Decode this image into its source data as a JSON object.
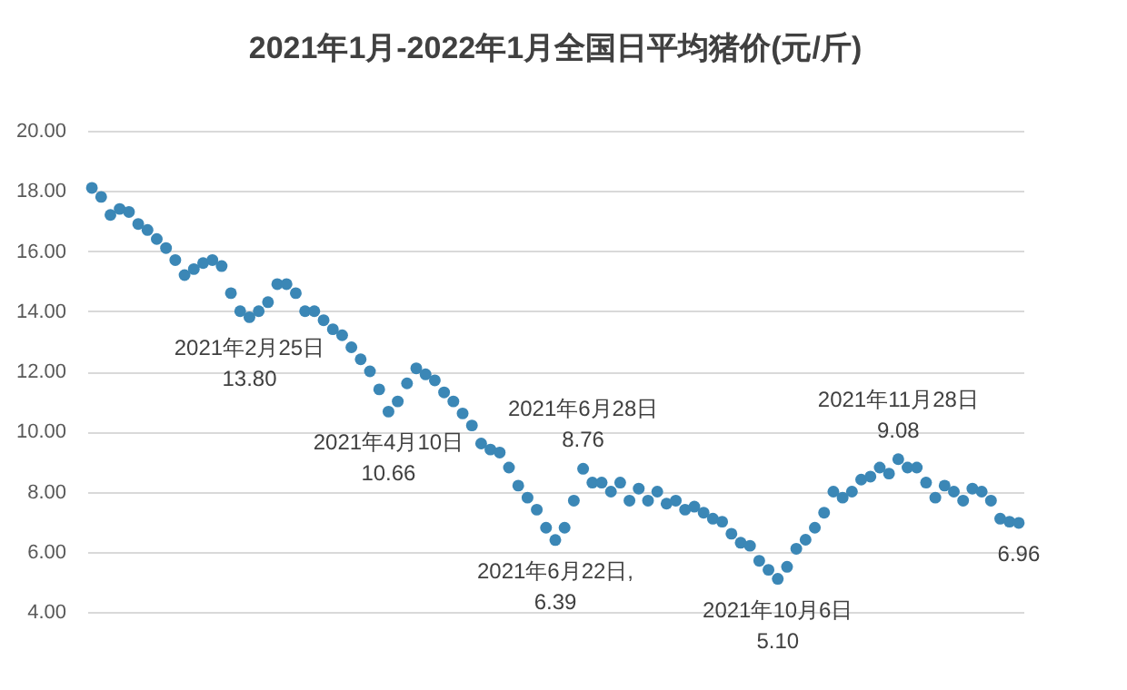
{
  "chart_data": {
    "type": "scatter",
    "title": "2021年1月-2022年1月全国日平均猪价(元/斤)",
    "categories": [
      null,
      null,
      null,
      null,
      null,
      null,
      null,
      null,
      null,
      null,
      null,
      null,
      null,
      null,
      null,
      null,
      null,
      null,
      null,
      null,
      null,
      null,
      null,
      null,
      null,
      null,
      null,
      null,
      null,
      null,
      null,
      null,
      null,
      null,
      null,
      null,
      null,
      null,
      null,
      null,
      null,
      null,
      null,
      null,
      null,
      null,
      null,
      null,
      null,
      null,
      null,
      null,
      null,
      null,
      null,
      null,
      null,
      null,
      null,
      null,
      null,
      null,
      null,
      null,
      null,
      null,
      null,
      null,
      null,
      null,
      null,
      null,
      null,
      null,
      null,
      null,
      null,
      null,
      null,
      null,
      null,
      null,
      null,
      null,
      null,
      null,
      null,
      null,
      null,
      null,
      null,
      null,
      null,
      null,
      null,
      null,
      null,
      null,
      null,
      null,
      null
    ],
    "values": [
      18.1,
      17.8,
      17.2,
      17.4,
      17.3,
      16.9,
      16.7,
      16.4,
      16.1,
      15.7,
      15.2,
      15.4,
      15.6,
      15.7,
      15.5,
      14.6,
      14.0,
      13.8,
      14.0,
      14.3,
      14.9,
      14.9,
      14.6,
      14.0,
      14.0,
      13.7,
      13.4,
      13.2,
      12.8,
      12.4,
      12.0,
      11.4,
      10.66,
      11.0,
      11.6,
      12.1,
      11.9,
      11.7,
      11.3,
      11.0,
      10.6,
      10.2,
      9.6,
      9.4,
      9.3,
      8.8,
      8.2,
      7.8,
      7.4,
      6.8,
      6.39,
      6.8,
      7.7,
      8.76,
      8.3,
      8.3,
      8.0,
      8.3,
      7.7,
      8.1,
      7.7,
      8.0,
      7.6,
      7.7,
      7.4,
      7.5,
      7.3,
      7.1,
      7.0,
      6.6,
      6.3,
      6.2,
      5.7,
      5.4,
      5.1,
      5.5,
      6.1,
      6.4,
      6.8,
      7.3,
      8.0,
      7.8,
      8.0,
      8.4,
      8.5,
      8.8,
      8.6,
      9.08,
      8.8,
      8.8,
      8.3,
      7.8,
      8.2,
      8.0,
      7.7,
      8.1,
      8.0,
      7.7,
      7.1,
      7.0,
      6.96
    ],
    "color": "#3b87b6",
    "marker": "circle",
    "ylim": [
      4,
      20
    ],
    "yticks": [
      {
        "value": 4,
        "label": "4.00"
      },
      {
        "value": 6,
        "label": "6.00"
      },
      {
        "value": 8,
        "label": "8.00"
      },
      {
        "value": 10,
        "label": "10.00"
      },
      {
        "value": 12,
        "label": "12.00"
      },
      {
        "value": 14,
        "label": "14.00"
      },
      {
        "value": 16,
        "label": "16.00"
      },
      {
        "value": 18,
        "label": "18.00"
      },
      {
        "value": 20,
        "label": "20.00"
      }
    ],
    "grid": "y",
    "tick_labels": "y",
    "annotations": [
      {
        "text": "2021年2月25日\n13.80",
        "y": 13.8
      },
      {
        "text": "2021年4月10日\n10.66",
        "y": 10.66
      },
      {
        "text": "2021年6月22日,\n6.39",
        "y": 6.39
      },
      {
        "text": "2021年6月28日\n8.76",
        "y": 8.76
      },
      {
        "text": "2021年10月6日\n5.10",
        "y": 5.1
      },
      {
        "text": "2021年11月28日\n9.08",
        "y": 9.08
      },
      {
        "text": "6.96",
        "y": 6.96
      }
    ]
  }
}
